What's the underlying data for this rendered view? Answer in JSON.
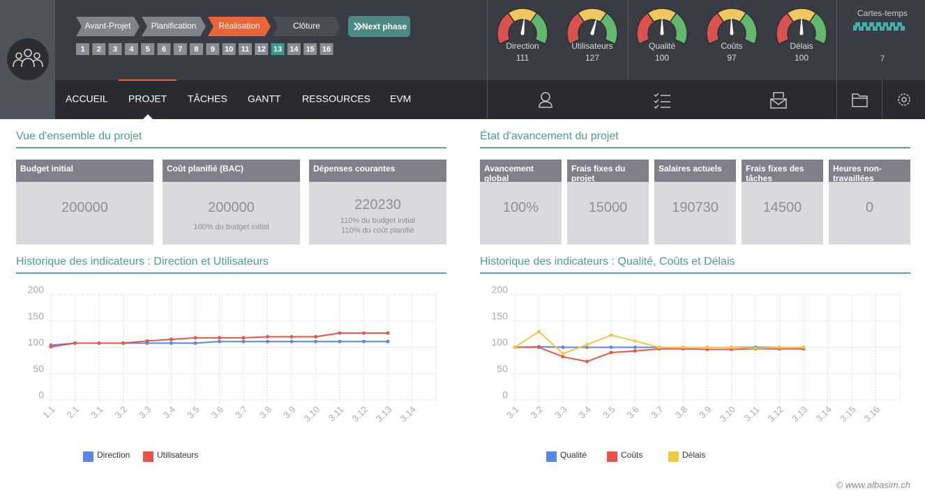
{
  "header": {
    "phases": [
      "Avant-Projet",
      "Planification",
      "Réalisation",
      "Clôture"
    ],
    "next_phase": "Next phase",
    "steps": [
      1,
      2,
      3,
      4,
      5,
      6,
      7,
      8,
      9,
      10,
      11,
      12,
      13,
      14,
      15,
      16
    ],
    "gauges": [
      {
        "label": "Direction",
        "value": 111
      },
      {
        "label": "Utilisateurs",
        "value": 127
      },
      {
        "label": "Qualité",
        "value": 100
      },
      {
        "label": "Coûts",
        "value": 97
      },
      {
        "label": "Délais",
        "value": 100
      }
    ],
    "timesheets": {
      "label": "Cartes-temps",
      "value": 7
    }
  },
  "nav": [
    "ACCUEIL",
    "PROJET",
    "TÂCHES",
    "GANTT",
    "RESSOURCES",
    "EVM"
  ],
  "overview": {
    "title": "Vue d'ensemble du projet",
    "cards": [
      {
        "label": "Budget initial",
        "value": 200000
      },
      {
        "label": "Coût planifié (BAC)",
        "value": 200000,
        "notes": [
          "100% du budget initial"
        ]
      },
      {
        "label": "Dépenses courantes",
        "value": 220230,
        "notes": [
          "110% du budget initial",
          "110% du coût planifié"
        ]
      }
    ]
  },
  "progress": {
    "title": "État d'avancement du projet",
    "cards": [
      {
        "label": "Avancement global",
        "value": "100%"
      },
      {
        "label": "Frais fixes du projet",
        "value": 15000
      },
      {
        "label": "Salaires actuels",
        "value": 190730
      },
      {
        "label": "Frais fixes des tâches",
        "value": 14500
      },
      {
        "label": "Heures non-travaillées",
        "value": 0
      }
    ]
  },
  "chart_data": [
    {
      "type": "line",
      "title": "Historique des indicateurs : Direction et Utilisateurs",
      "categories": [
        "1.1",
        "2.1",
        "3.1",
        "3.2",
        "3.3",
        "3.4",
        "3.5",
        "3.6",
        "3.7",
        "3.8",
        "3.9",
        "3.10",
        "3.11",
        "3.12",
        "3.13",
        "3.14"
      ],
      "series": [
        {
          "name": "Direction",
          "color": "#5b86e5",
          "values": [
            104,
            108,
            108,
            108,
            108,
            108,
            108,
            111,
            111,
            111,
            111,
            111,
            111,
            111,
            111,
            null
          ]
        },
        {
          "name": "Utilisateurs",
          "color": "#e8534a",
          "values": [
            101,
            108,
            108,
            108,
            112,
            115,
            118,
            118,
            118,
            120,
            120,
            120,
            127,
            127,
            127,
            null
          ]
        }
      ],
      "ylim": [
        0,
        200
      ],
      "yticks": [
        0,
        50,
        100,
        150,
        200
      ],
      "grid": true,
      "legend": "bottom"
    },
    {
      "type": "line",
      "title": "Historique des indicateurs : Qualité, Coûts et Délais",
      "categories": [
        "3.1",
        "3.2",
        "3.3",
        "3.4",
        "3.5",
        "3.6",
        "3.7",
        "3.8",
        "3.9",
        "3.10",
        "3.11",
        "3.12",
        "3.13",
        "3.14",
        "3.15",
        "3.16"
      ],
      "series": [
        {
          "name": "Qualité",
          "color": "#5b86e5",
          "values": [
            100,
            101,
            100,
            100,
            100,
            100,
            100,
            100,
            100,
            100,
            100,
            100,
            100,
            null,
            null,
            null
          ]
        },
        {
          "name": "Coûts",
          "color": "#e8534a",
          "values": [
            100,
            100,
            82,
            73,
            90,
            93,
            97,
            97,
            96,
            96,
            97,
            97,
            97,
            null,
            null,
            null
          ]
        },
        {
          "name": "Délais",
          "color": "#f2c744",
          "values": [
            100,
            130,
            88,
            105,
            123,
            112,
            100,
            100,
            100,
            100,
            98,
            100,
            100,
            null,
            null,
            null
          ]
        }
      ],
      "ylim": [
        0,
        200
      ],
      "yticks": [
        0,
        50,
        100,
        150,
        200
      ],
      "grid": true,
      "legend": "bottom"
    }
  ],
  "footer": "© www.albasim.ch"
}
